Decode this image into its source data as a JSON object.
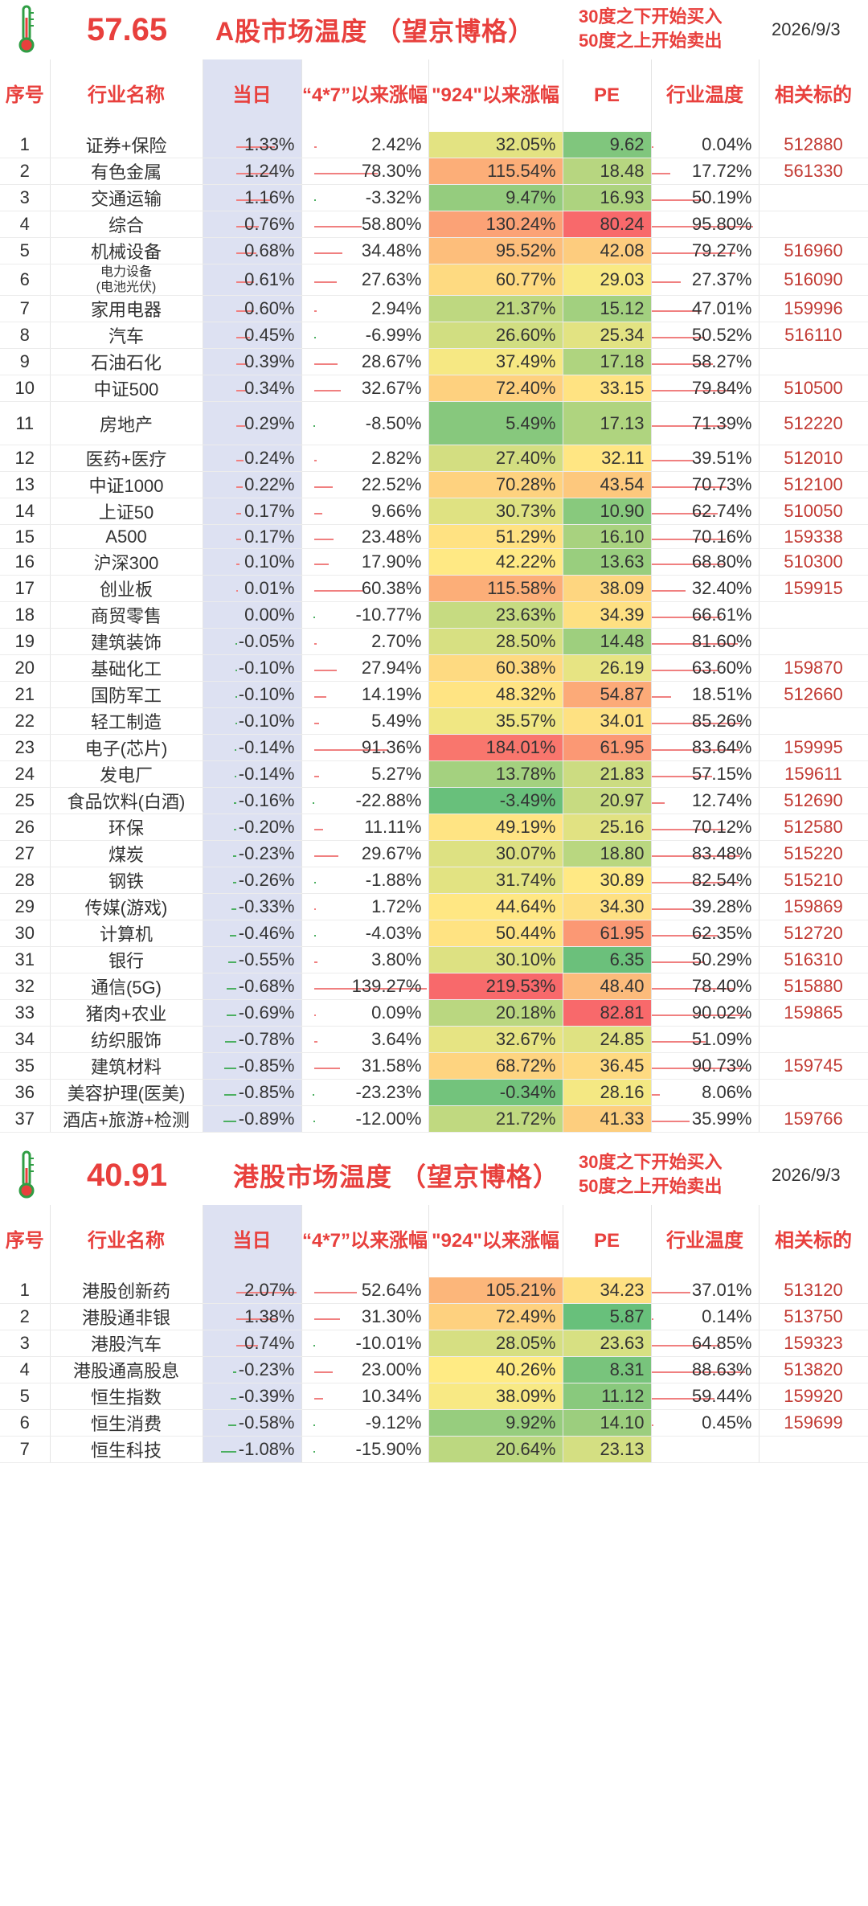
{
  "a_share": {
    "temperature": "57.65",
    "title": "A股市场温度 （望京博格）",
    "note_line1": "30度之下开始买入",
    "note_line2": "50度之上开始卖出",
    "date": "2026/9/3",
    "headers": {
      "seq": "序号",
      "name": "行业名称",
      "daily": "当日",
      "since_47": "“4*7”以来涨幅",
      "since_924": "\"924\"以来涨幅",
      "pe": "PE",
      "temp": "行业温度",
      "related": "相关标的"
    },
    "rows": [
      {
        "seq": "1",
        "name": "证券+保险",
        "daily": "1.33%",
        "d": 1.33,
        "r47": "2.42%",
        "v47": 2.42,
        "r924": "32.05%",
        "v924": 32.05,
        "pe": "9.62",
        "vpe": 9.62,
        "temp": "0.04%",
        "vt": 0.04,
        "code": "512880"
      },
      {
        "seq": "2",
        "name": "有色金属",
        "daily": "1.24%",
        "d": 1.24,
        "r47": "78.30%",
        "v47": 78.3,
        "r924": "115.54%",
        "v924": 115.54,
        "pe": "18.48",
        "vpe": 18.48,
        "temp": "17.72%",
        "vt": 17.72,
        "code": "561330"
      },
      {
        "seq": "3",
        "name": "交通运输",
        "daily": "1.16%",
        "d": 1.16,
        "r47": "-3.32%",
        "v47": -3.32,
        "r924": "9.47%",
        "v924": 9.47,
        "pe": "16.93",
        "vpe": 16.93,
        "temp": "50.19%",
        "vt": 50.19,
        "code": ""
      },
      {
        "seq": "4",
        "name": "综合",
        "daily": "0.76%",
        "d": 0.76,
        "r47": "58.80%",
        "v47": 58.8,
        "r924": "130.24%",
        "v924": 130.24,
        "pe": "80.24",
        "vpe": 80.24,
        "temp": "95.80%",
        "vt": 95.8,
        "code": ""
      },
      {
        "seq": "5",
        "name": "机械设备",
        "daily": "0.68%",
        "d": 0.68,
        "r47": "34.48%",
        "v47": 34.48,
        "r924": "95.52%",
        "v924": 95.52,
        "pe": "42.08",
        "vpe": 42.08,
        "temp": "79.27%",
        "vt": 79.27,
        "code": "516960"
      },
      {
        "seq": "6",
        "name": "电力设备\n(电池光伏)",
        "small": true,
        "daily": "0.61%",
        "d": 0.61,
        "r47": "27.63%",
        "v47": 27.63,
        "r924": "60.77%",
        "v924": 60.77,
        "pe": "29.03",
        "vpe": 29.03,
        "temp": "27.37%",
        "vt": 27.37,
        "code": "516090"
      },
      {
        "seq": "7",
        "name": "家用电器",
        "daily": "0.60%",
        "d": 0.6,
        "r47": "2.94%",
        "v47": 2.94,
        "r924": "21.37%",
        "v924": 21.37,
        "pe": "15.12",
        "vpe": 15.12,
        "temp": "47.01%",
        "vt": 47.01,
        "code": "159996"
      },
      {
        "seq": "8",
        "name": "汽车",
        "daily": "0.45%",
        "d": 0.45,
        "r47": "-6.99%",
        "v47": -6.99,
        "r924": "26.60%",
        "v924": 26.6,
        "pe": "25.34",
        "vpe": 25.34,
        "temp": "50.52%",
        "vt": 50.52,
        "code": "516110"
      },
      {
        "seq": "9",
        "name": "石油石化",
        "daily": "0.39%",
        "d": 0.39,
        "r47": "28.67%",
        "v47": 28.67,
        "r924": "37.49%",
        "v924": 37.49,
        "pe": "17.18",
        "vpe": 17.18,
        "temp": "58.27%",
        "vt": 58.27,
        "code": ""
      },
      {
        "seq": "10",
        "name": "中证500",
        "daily": "0.34%",
        "d": 0.34,
        "r47": "32.67%",
        "v47": 32.67,
        "r924": "72.40%",
        "v924": 72.4,
        "pe": "33.15",
        "vpe": 33.15,
        "temp": "79.84%",
        "vt": 79.84,
        "code": "510500"
      },
      {
        "seq": "11",
        "name": "房地产",
        "tall": true,
        "daily": "0.29%",
        "d": 0.29,
        "r47": "-8.50%",
        "v47": -8.5,
        "r924": "5.49%",
        "v924": 5.49,
        "pe": "17.13",
        "vpe": 17.13,
        "temp": "71.39%",
        "vt": 71.39,
        "code": "512220"
      },
      {
        "seq": "12",
        "name": "医药+医疗",
        "daily": "0.24%",
        "d": 0.24,
        "r47": "2.82%",
        "v47": 2.82,
        "r924": "27.40%",
        "v924": 27.4,
        "pe": "32.11",
        "vpe": 32.11,
        "temp": "39.51%",
        "vt": 39.51,
        "code": "512010"
      },
      {
        "seq": "13",
        "name": "中证1000",
        "daily": "0.22%",
        "d": 0.22,
        "r47": "22.52%",
        "v47": 22.52,
        "r924": "70.28%",
        "v924": 70.28,
        "pe": "43.54",
        "vpe": 43.54,
        "temp": "70.73%",
        "vt": 70.73,
        "code": "512100"
      },
      {
        "seq": "14",
        "name": "上证50",
        "daily": "0.17%",
        "d": 0.17,
        "r47": "9.66%",
        "v47": 9.66,
        "r924": "30.73%",
        "v924": 30.73,
        "pe": "10.90",
        "vpe": 10.9,
        "temp": "62.74%",
        "vt": 62.74,
        "code": "510050"
      },
      {
        "seq": "15",
        "name": "A500",
        "daily": "0.17%",
        "d": 0.17,
        "r47": "23.48%",
        "v47": 23.48,
        "r924": "51.29%",
        "v924": 51.29,
        "pe": "16.10",
        "vpe": 16.1,
        "temp": "70.16%",
        "vt": 70.16,
        "code": "159338"
      },
      {
        "seq": "16",
        "name": "沪深300",
        "daily": "0.10%",
        "d": 0.1,
        "r47": "17.90%",
        "v47": 17.9,
        "r924": "42.22%",
        "v924": 42.22,
        "pe": "13.63",
        "vpe": 13.63,
        "temp": "68.80%",
        "vt": 68.8,
        "code": "510300"
      },
      {
        "seq": "17",
        "name": "创业板",
        "daily": "0.01%",
        "d": 0.01,
        "r47": "60.38%",
        "v47": 60.38,
        "r924": "115.58%",
        "v924": 115.58,
        "pe": "38.09",
        "vpe": 38.09,
        "temp": "32.40%",
        "vt": 32.4,
        "code": "159915"
      },
      {
        "seq": "18",
        "name": "商贸零售",
        "daily": "0.00%",
        "d": 0.0,
        "r47": "-10.77%",
        "v47": -10.77,
        "r924": "23.63%",
        "v924": 23.63,
        "pe": "34.39",
        "vpe": 34.39,
        "temp": "66.61%",
        "vt": 66.61,
        "code": ""
      },
      {
        "seq": "19",
        "name": "建筑装饰",
        "daily": "-0.05%",
        "d": -0.05,
        "r47": "2.70%",
        "v47": 2.7,
        "r924": "28.50%",
        "v924": 28.5,
        "pe": "14.48",
        "vpe": 14.48,
        "temp": "81.60%",
        "vt": 81.6,
        "code": ""
      },
      {
        "seq": "20",
        "name": "基础化工",
        "daily": "-0.10%",
        "d": -0.1,
        "r47": "27.94%",
        "v47": 27.94,
        "r924": "60.38%",
        "v924": 60.38,
        "pe": "26.19",
        "vpe": 26.19,
        "temp": "63.60%",
        "vt": 63.6,
        "code": "159870"
      },
      {
        "seq": "21",
        "name": "国防军工",
        "daily": "-0.10%",
        "d": -0.1,
        "r47": "14.19%",
        "v47": 14.19,
        "r924": "48.32%",
        "v924": 48.32,
        "pe": "54.87",
        "vpe": 54.87,
        "temp": "18.51%",
        "vt": 18.51,
        "code": "512660"
      },
      {
        "seq": "22",
        "name": "轻工制造",
        "daily": "-0.10%",
        "d": -0.1,
        "r47": "5.49%",
        "v47": 5.49,
        "r924": "35.57%",
        "v924": 35.57,
        "pe": "34.01",
        "vpe": 34.01,
        "temp": "85.26%",
        "vt": 85.26,
        "code": ""
      },
      {
        "seq": "23",
        "name": "电子(芯片)",
        "daily": "-0.14%",
        "d": -0.14,
        "r47": "91.36%",
        "v47": 91.36,
        "r924": "184.01%",
        "v924": 184.01,
        "pe": "61.95",
        "vpe": 61.95,
        "temp": "83.64%",
        "vt": 83.64,
        "code": "159995"
      },
      {
        "seq": "24",
        "name": "发电厂",
        "daily": "-0.14%",
        "d": -0.14,
        "r47": "5.27%",
        "v47": 5.27,
        "r924": "13.78%",
        "v924": 13.78,
        "pe": "21.83",
        "vpe": 21.83,
        "temp": "57.15%",
        "vt": 57.15,
        "code": "159611"
      },
      {
        "seq": "25",
        "name": "食品饮料(白酒)",
        "daily": "-0.16%",
        "d": -0.16,
        "r47": "-22.88%",
        "v47": -22.88,
        "r924": "-3.49%",
        "v924": -3.49,
        "pe": "20.97",
        "vpe": 20.97,
        "temp": "12.74%",
        "vt": 12.74,
        "code": "512690"
      },
      {
        "seq": "26",
        "name": "环保",
        "daily": "-0.20%",
        "d": -0.2,
        "r47": "11.11%",
        "v47": 11.11,
        "r924": "49.19%",
        "v924": 49.19,
        "pe": "25.16",
        "vpe": 25.16,
        "temp": "70.12%",
        "vt": 70.12,
        "code": "512580"
      },
      {
        "seq": "27",
        "name": "煤炭",
        "daily": "-0.23%",
        "d": -0.23,
        "r47": "29.67%",
        "v47": 29.67,
        "r924": "30.07%",
        "v924": 30.07,
        "pe": "18.80",
        "vpe": 18.8,
        "temp": "83.48%",
        "vt": 83.48,
        "code": "515220"
      },
      {
        "seq": "28",
        "name": "钢铁",
        "daily": "-0.26%",
        "d": -0.26,
        "r47": "-1.88%",
        "v47": -1.88,
        "r924": "31.74%",
        "v924": 31.74,
        "pe": "30.89",
        "vpe": 30.89,
        "temp": "82.54%",
        "vt": 82.54,
        "code": "515210"
      },
      {
        "seq": "29",
        "name": "传媒(游戏)",
        "daily": "-0.33%",
        "d": -0.33,
        "r47": "1.72%",
        "v47": 1.72,
        "r924": "44.64%",
        "v924": 44.64,
        "pe": "34.30",
        "vpe": 34.3,
        "temp": "39.28%",
        "vt": 39.28,
        "code": "159869"
      },
      {
        "seq": "30",
        "name": "计算机",
        "daily": "-0.46%",
        "d": -0.46,
        "r47": "-4.03%",
        "v47": -4.03,
        "r924": "50.44%",
        "v924": 50.44,
        "pe": "61.95",
        "vpe": 61.95,
        "temp": "62.35%",
        "vt": 62.35,
        "code": "512720"
      },
      {
        "seq": "31",
        "name": "银行",
        "daily": "-0.55%",
        "d": -0.55,
        "r47": "3.80%",
        "v47": 3.8,
        "r924": "30.10%",
        "v924": 30.1,
        "pe": "6.35",
        "vpe": 6.35,
        "temp": "50.29%",
        "vt": 50.29,
        "code": "516310"
      },
      {
        "seq": "32",
        "name": "通信(5G)",
        "daily": "-0.68%",
        "d": -0.68,
        "r47": "139.27%",
        "v47": 139.27,
        "r924": "219.53%",
        "v924": 219.53,
        "pe": "48.40",
        "vpe": 48.4,
        "temp": "78.40%",
        "vt": 78.4,
        "code": "515880"
      },
      {
        "seq": "33",
        "name": "猪肉+农业",
        "daily": "-0.69%",
        "d": -0.69,
        "r47": "0.09%",
        "v47": 0.09,
        "r924": "20.18%",
        "v924": 20.18,
        "pe": "82.81",
        "vpe": 82.81,
        "temp": "90.02%",
        "vt": 90.02,
        "code": "159865"
      },
      {
        "seq": "34",
        "name": "纺织服饰",
        "daily": "-0.78%",
        "d": -0.78,
        "r47": "3.64%",
        "v47": 3.64,
        "r924": "32.67%",
        "v924": 32.67,
        "pe": "24.85",
        "vpe": 24.85,
        "temp": "51.09%",
        "vt": 51.09,
        "code": ""
      },
      {
        "seq": "35",
        "name": "建筑材料",
        "daily": "-0.85%",
        "d": -0.85,
        "r47": "31.58%",
        "v47": 31.58,
        "r924": "68.72%",
        "v924": 68.72,
        "pe": "36.45",
        "vpe": 36.45,
        "temp": "90.73%",
        "vt": 90.73,
        "code": "159745"
      },
      {
        "seq": "36",
        "name": "美容护理(医美)",
        "daily": "-0.85%",
        "d": -0.85,
        "r47": "-23.23%",
        "v47": -23.23,
        "r924": "-0.34%",
        "v924": -0.34,
        "pe": "28.16",
        "vpe": 28.16,
        "temp": "8.06%",
        "vt": 8.06,
        "code": ""
      },
      {
        "seq": "37",
        "name": "酒店+旅游+检测",
        "daily": "-0.89%",
        "d": -0.89,
        "r47": "-12.00%",
        "v47": -12.0,
        "r924": "21.72%",
        "v924": 21.72,
        "pe": "41.33",
        "vpe": 41.33,
        "temp": "35.99%",
        "vt": 35.99,
        "code": "159766"
      }
    ]
  },
  "hk_share": {
    "temperature": "40.91",
    "title": "港股市场温度 （望京博格）",
    "note_line1": "30度之下开始买入",
    "note_line2": "50度之上开始卖出",
    "date": "2026/9/3",
    "headers": {
      "seq": "序号",
      "name": "行业名称",
      "daily": "当日",
      "since_47": "“4*7”以来涨幅",
      "since_924": "\"924\"以来涨幅",
      "pe": "PE",
      "temp": "行业温度",
      "related": "相关标的"
    },
    "rows": [
      {
        "seq": "1",
        "name": "港股创新药",
        "daily": "2.07%",
        "d": 2.07,
        "r47": "52.64%",
        "v47": 52.64,
        "r924": "105.21%",
        "v924": 105.21,
        "pe": "34.23",
        "vpe": 34.23,
        "temp": "37.01%",
        "vt": 37.01,
        "code": "513120"
      },
      {
        "seq": "2",
        "name": "港股通非银",
        "daily": "1.38%",
        "d": 1.38,
        "r47": "31.30%",
        "v47": 31.3,
        "r924": "72.49%",
        "v924": 72.49,
        "pe": "5.87",
        "vpe": 5.87,
        "temp": "0.14%",
        "vt": 0.14,
        "code": "513750"
      },
      {
        "seq": "3",
        "name": "港股汽车",
        "daily": "0.74%",
        "d": 0.74,
        "r47": "-10.01%",
        "v47": -10.01,
        "r924": "28.05%",
        "v924": 28.05,
        "pe": "23.63",
        "vpe": 23.63,
        "temp": "64.85%",
        "vt": 64.85,
        "code": "159323"
      },
      {
        "seq": "4",
        "name": "港股通高股息",
        "daily": "-0.23%",
        "d": -0.23,
        "r47": "23.00%",
        "v47": 23.0,
        "r924": "40.26%",
        "v924": 40.26,
        "pe": "8.31",
        "vpe": 8.31,
        "temp": "88.63%",
        "vt": 88.63,
        "code": "513820"
      },
      {
        "seq": "5",
        "name": "恒生指数",
        "daily": "-0.39%",
        "d": -0.39,
        "r47": "10.34%",
        "v47": 10.34,
        "r924": "38.09%",
        "v924": 38.09,
        "pe": "11.12",
        "vpe": 11.12,
        "temp": "59.44%",
        "vt": 59.44,
        "code": "159920"
      },
      {
        "seq": "6",
        "name": "恒生消费",
        "daily": "-0.58%",
        "d": -0.58,
        "r47": "-9.12%",
        "v47": -9.12,
        "r924": "9.92%",
        "v924": 9.92,
        "pe": "14.10",
        "vpe": 14.1,
        "temp": "0.45%",
        "vt": 0.45,
        "code": "159699"
      },
      {
        "seq": "7",
        "name": "恒生科技",
        "daily": "-1.08%",
        "d": -1.08,
        "r47": "-15.90%",
        "v47": -15.9,
        "r924": "20.64%",
        "v924": 20.64,
        "pe": "23.13",
        "vpe": 23.13,
        "temp": "",
        "vt": 0,
        "code": ""
      }
    ]
  },
  "colors": {
    "accent": "#e8403d",
    "code": "#c23a33",
    "daily_bg": "#dde1f2",
    "bar_pos": "#f05656",
    "bar_neg": "#2fa84a"
  },
  "icons": {
    "thermometer": "thermometer-icon"
  }
}
